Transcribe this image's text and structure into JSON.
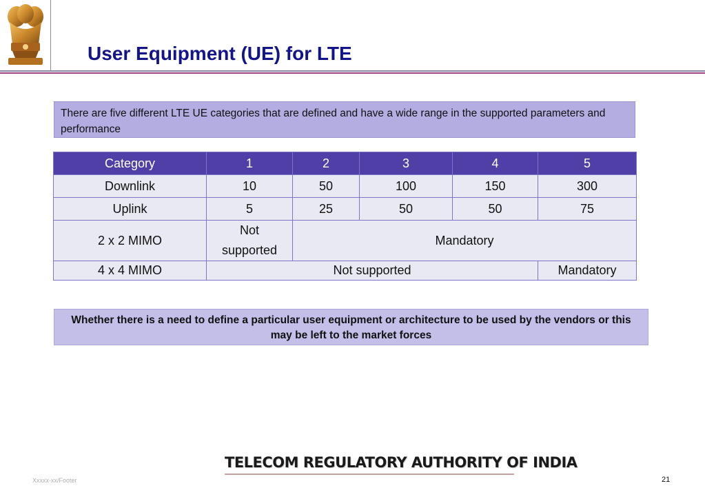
{
  "slide": {
    "title": "User Equipment (UE) for LTE",
    "intro": "There are five different LTE UE categories that are defined and have a wide range in the supported parameters and performance",
    "question": "Whether there is a need to define a particular user equipment or architecture to be used by the vendors or this may be left to the market forces",
    "organization": "TELECOM REGULATORY AUTHORITY OF INDIA",
    "footer": "Xxxxx-xx/Footer",
    "page_number": "21"
  },
  "table": {
    "header": [
      "Category",
      "1",
      "2",
      "3",
      "4",
      "5"
    ],
    "downlink": [
      "Downlink",
      "10",
      "50",
      "100",
      "150",
      "300"
    ],
    "uplink": [
      "Uplink",
      "5",
      "25",
      "50",
      "50",
      "75"
    ],
    "mimo2": [
      "2 x 2 MIMO",
      "Not",
      "supported",
      "Mandatory"
    ],
    "mimo4": [
      "4 x 4 MIMO",
      "Not supported",
      "Mandatory"
    ]
  },
  "colors": {
    "title": "#14148a",
    "table_header": "#4f3fa6",
    "table_cell": "#e9e9f4",
    "intro_box": "#b3ade2",
    "question_box": "#c3bfe8"
  }
}
